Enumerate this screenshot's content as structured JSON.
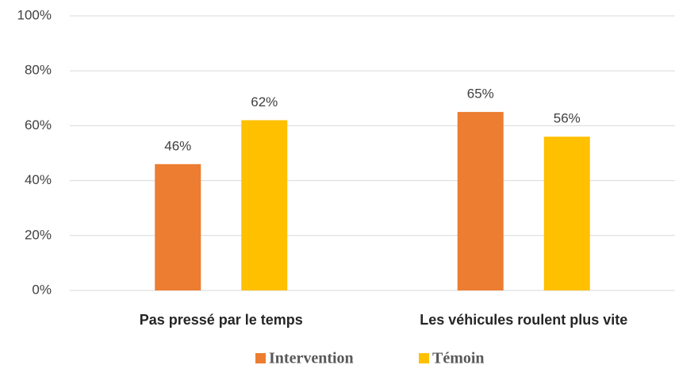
{
  "chart_data": {
    "type": "bar",
    "categories": [
      "Pas pressé par le temps",
      "Les véhicules roulent plus vite"
    ],
    "series": [
      {
        "name": "Intervention",
        "color": "#ed7d31",
        "values": [
          46,
          65
        ],
        "value_labels": [
          "46%",
          "65%"
        ]
      },
      {
        "name": "Témoin",
        "color": "#ffc000",
        "values": [
          62,
          56
        ],
        "value_labels": [
          "62%",
          "56%"
        ]
      }
    ],
    "ylim": [
      0,
      100
    ],
    "yticks": [
      {
        "value": 0,
        "label": "0%"
      },
      {
        "value": 20,
        "label": "20%"
      },
      {
        "value": 40,
        "label": "40%"
      },
      {
        "value": 60,
        "label": "60%"
      },
      {
        "value": 80,
        "label": "80%"
      },
      {
        "value": 100,
        "label": "100%"
      }
    ],
    "grid": true,
    "legend": "bottom"
  }
}
